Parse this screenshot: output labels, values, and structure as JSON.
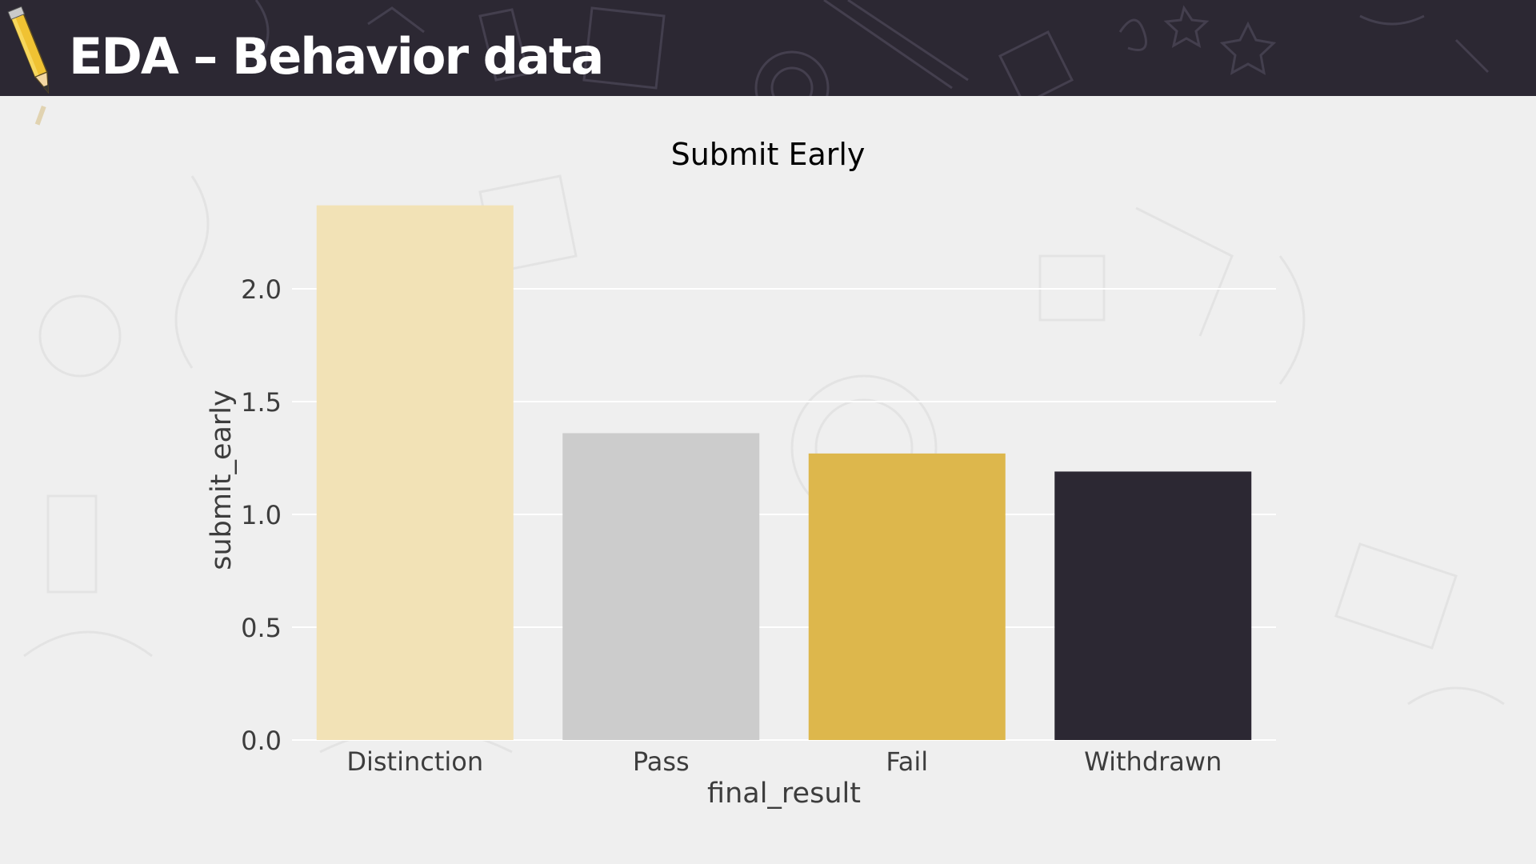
{
  "slide": {
    "title": "EDA – Behavior data"
  },
  "colors": {
    "header_bg": "#2c2833",
    "background": "#efefef",
    "grid": "#ffffff"
  },
  "icons": {
    "pencil": "pencil-icon"
  },
  "chart_data": {
    "type": "bar",
    "title": "Submit Early",
    "xlabel": "final_result",
    "ylabel": "submit_early",
    "categories": [
      "Distinction",
      "Pass",
      "Fail",
      "Withdrawn"
    ],
    "values": [
      2.37,
      1.36,
      1.27,
      1.19
    ],
    "colors": [
      "#f2e2b6",
      "#cccccc",
      "#ddb74c",
      "#2c2833"
    ],
    "yticks": [
      0.0,
      0.5,
      1.0,
      1.5,
      2.0
    ],
    "ytick_labels": [
      "0.0",
      "0.5",
      "1.0",
      "1.5",
      "2.0"
    ],
    "ylim": [
      0,
      2.5
    ],
    "grid": true,
    "legend": false
  }
}
